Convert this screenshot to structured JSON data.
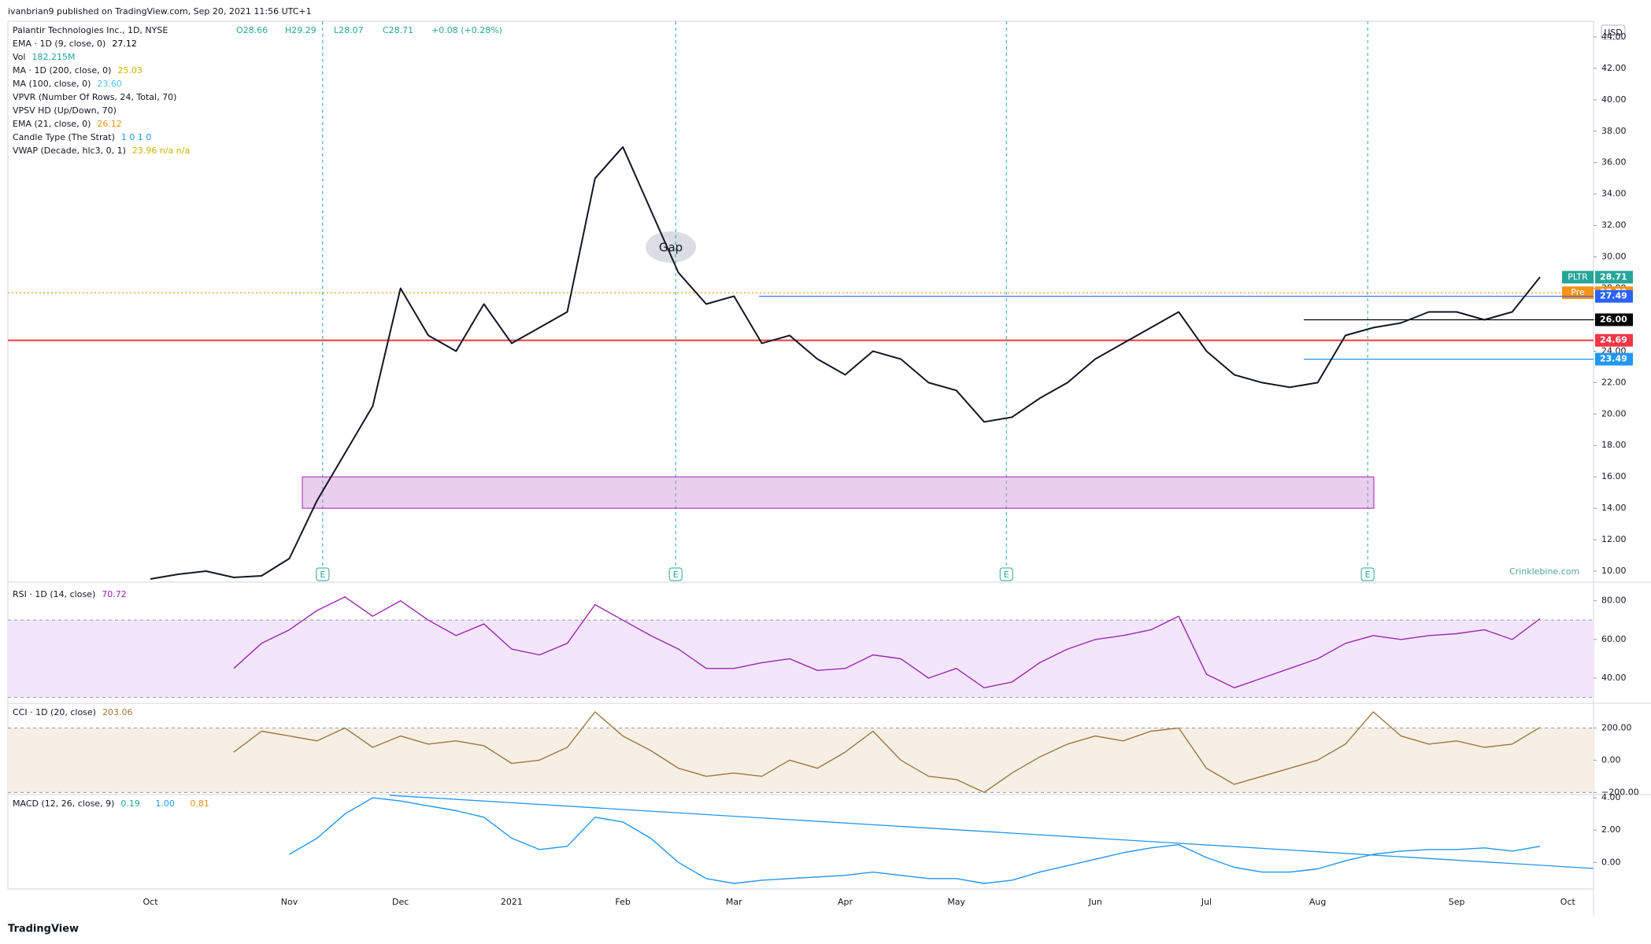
{
  "header": {
    "publisher": "ivanbrian9 published on TradingView.com, Sep 20, 2021 11:56 UTC+1",
    "currency": "USD",
    "annotation": "Gap",
    "watermark": "Crinklebine.com",
    "footer": "TradingView",
    "earnings_marker": "E"
  },
  "chart_data": [
    {
      "type": "line",
      "title": "Palantir Technologies Inc., 1D, NYSE",
      "ohlc": [
        "O28.66",
        "H29.29",
        "L28.07",
        "C28.71",
        "+0.08 (+0.28%)"
      ],
      "indicators": [
        {
          "name": "EMA · 1D (9, close, 0)",
          "value": "27.12",
          "color": "#000000"
        },
        {
          "name": "Vol",
          "value": "182.215M",
          "color": "#26a69a"
        },
        {
          "name": "MA · 1D (200, close, 0)",
          "value": "25.03",
          "color": "#c8b400"
        },
        {
          "name": "MA (100, close, 0)",
          "value": "23.60",
          "color": "#4fc3f7"
        },
        {
          "name": "VPVR (Number Of Rows, 24, Total, 70)",
          "value": "",
          "color": "#131722"
        },
        {
          "name": "VPSV HD (Up/Down, 70)",
          "value": "",
          "color": "#131722"
        },
        {
          "name": "EMA (21, close, 0)",
          "value": "26.12",
          "color": "#f7931a"
        },
        {
          "name": "Candle Type (The Strat)",
          "value": "1 0 1 0",
          "color": "#2196f3"
        },
        {
          "name": "VWAP (Decade, hlc3, 0, 1)",
          "value": "23.96  n/a  n/a",
          "color": "#c8b400"
        }
      ],
      "categories": [
        "Oct",
        null,
        null,
        null,
        null,
        "Nov",
        null,
        null,
        null,
        "Dec",
        null,
        null,
        null,
        "2021",
        null,
        null,
        null,
        "Feb",
        null,
        null,
        null,
        "Mar",
        null,
        null,
        null,
        "Apr",
        null,
        null,
        null,
        "May",
        null,
        null,
        null,
        null,
        "Jun",
        null,
        null,
        null,
        "Jul",
        null,
        null,
        null,
        "Aug",
        null,
        null,
        null,
        null,
        "Sep",
        null,
        null,
        null,
        "Oct"
      ],
      "series": [
        {
          "name": "PLTR",
          "color": "#131722",
          "values": [
            9.5,
            9.8,
            10,
            9.6,
            9.7,
            10.8,
            14.5,
            17.5,
            20.5,
            28,
            25,
            24,
            27,
            24.5,
            25.5,
            26.5,
            35,
            37,
            33,
            29,
            27,
            27.5,
            24.5,
            25,
            23.5,
            22.5,
            24,
            23.5,
            22,
            21.5,
            19.5,
            19.8,
            21,
            22,
            23.5,
            24.5,
            25.5,
            26.5,
            24,
            22.5,
            22,
            21.7,
            22,
            25,
            25.5,
            25.8,
            26.5,
            26.5,
            26,
            26.5,
            28.71,
            null
          ]
        }
      ],
      "ylim": [
        9.3,
        45
      ],
      "yticks": [
        {
          "value": 10,
          "label": "10.00"
        },
        {
          "value": 12,
          "label": "12.00"
        },
        {
          "value": 14,
          "label": "14.00"
        },
        {
          "value": 16,
          "label": "16.00"
        },
        {
          "value": 18,
          "label": "18.00"
        },
        {
          "value": 20,
          "label": "20.00"
        },
        {
          "value": 22,
          "label": "22.00"
        },
        {
          "value": 24,
          "label": "24.00"
        },
        {
          "value": 26,
          "label": "26.00"
        },
        {
          "value": 28,
          "label": "28.00"
        },
        {
          "value": 30,
          "label": "30.00"
        },
        {
          "value": 32,
          "label": "32.00"
        },
        {
          "value": 34,
          "label": "34.00"
        },
        {
          "value": 36,
          "label": "36.00"
        },
        {
          "value": 38,
          "label": "38.00"
        },
        {
          "value": 40,
          "label": "40.00"
        },
        {
          "value": 42,
          "label": "42.00"
        },
        {
          "value": 44,
          "label": "44.00"
        }
      ],
      "levels": [
        {
          "tag": "PLTR",
          "value": 28.71,
          "color": "#26a69a",
          "line": "none"
        },
        {
          "tag": "Pre",
          "value": 27.72,
          "color": "#f7931a",
          "line": "dotted"
        },
        {
          "value": 27.49,
          "color": "#2962ff",
          "line": "solid"
        },
        {
          "value": 26,
          "label": "26.00",
          "color": "#000000",
          "line": "solid"
        },
        {
          "value": 24.69,
          "color": "#f23645",
          "line": "full"
        },
        {
          "value": 23.49,
          "color": "#2196f3",
          "line": "solid"
        }
      ],
      "zone": {
        "from": 14,
        "to": 16,
        "color": "#ce93d8"
      }
    },
    {
      "type": "line",
      "title": "RSI · 1D (14, close)",
      "series": [
        {
          "name": "RSI",
          "color": "#9c27b0",
          "values": [
            null,
            null,
            null,
            45,
            58,
            65,
            75,
            82,
            72,
            80,
            70,
            62,
            68,
            55,
            52,
            58,
            78,
            70,
            62,
            55,
            45,
            45,
            48,
            50,
            44,
            45,
            52,
            50,
            40,
            45,
            35,
            38,
            48,
            55,
            60,
            62,
            65,
            72,
            42,
            35,
            40,
            45,
            50,
            58,
            62,
            60,
            62,
            63,
            65,
            60,
            70.72,
            null
          ]
        }
      ],
      "ylim": [
        27,
        88
      ],
      "yticks": [
        {
          "value": 40,
          "label": "40.00"
        },
        {
          "value": 60,
          "label": "60.00"
        },
        {
          "value": 80,
          "label": "80.00"
        }
      ],
      "band": [
        30,
        70
      ],
      "band_color": "#f3e5fc"
    },
    {
      "type": "line",
      "title": "CCI · 1D (20, close)",
      "series": [
        {
          "name": "CCI",
          "color": "#a0773b",
          "values": [
            null,
            null,
            null,
            50,
            180,
            150,
            120,
            200,
            80,
            150,
            100,
            120,
            90,
            -20,
            0,
            80,
            300,
            150,
            60,
            -50,
            -100,
            -80,
            -100,
            0,
            -50,
            50,
            180,
            0,
            -100,
            -120,
            -200,
            -80,
            20,
            100,
            150,
            120,
            180,
            200,
            -50,
            -150,
            -100,
            -50,
            0,
            100,
            300,
            150,
            100,
            120,
            80,
            100,
            203.06,
            null
          ]
        }
      ],
      "ylim": [
        -213,
        353
      ],
      "yticks": [
        {
          "value": -200,
          "label": "−200.00"
        },
        {
          "value": 0,
          "label": "0.00"
        },
        {
          "value": 200,
          "label": "200.00"
        }
      ],
      "band": [
        -200,
        200
      ],
      "band_color": "#f5efe6"
    },
    {
      "type": "line",
      "title": "MACD (12, 26, close, 9)",
      "legend_values": [
        "0.19",
        "1.00",
        "0.81"
      ],
      "legend_colors": [
        "#26a69a",
        "#2196f3",
        "#f7931a"
      ],
      "series": [
        {
          "name": "MACD",
          "color": "#2196f3",
          "values": [
            null,
            null,
            null,
            null,
            null,
            0.5,
            1.5,
            3,
            4,
            3.8,
            3.5,
            3.2,
            2.8,
            1.5,
            0.8,
            1,
            2.8,
            2.5,
            1.5,
            0,
            -1,
            -1.3,
            -1.1,
            -1,
            -0.9,
            -0.8,
            -0.6,
            -0.8,
            -1,
            -1,
            -1.3,
            -1.1,
            -0.6,
            -0.2,
            0.2,
            0.6,
            0.9,
            1.1,
            0.3,
            -0.3,
            -0.6,
            -0.6,
            -0.4,
            0.1,
            0.5,
            0.7,
            0.8,
            0.8,
            0.9,
            0.7,
            1.0,
            null
          ]
        }
      ],
      "ylim": [
        -1.64,
        4.2
      ],
      "yticks": [
        {
          "value": 0,
          "label": "0.00"
        },
        {
          "value": 2,
          "label": "2.00"
        },
        {
          "value": 4,
          "label": "4.00"
        }
      ]
    }
  ]
}
